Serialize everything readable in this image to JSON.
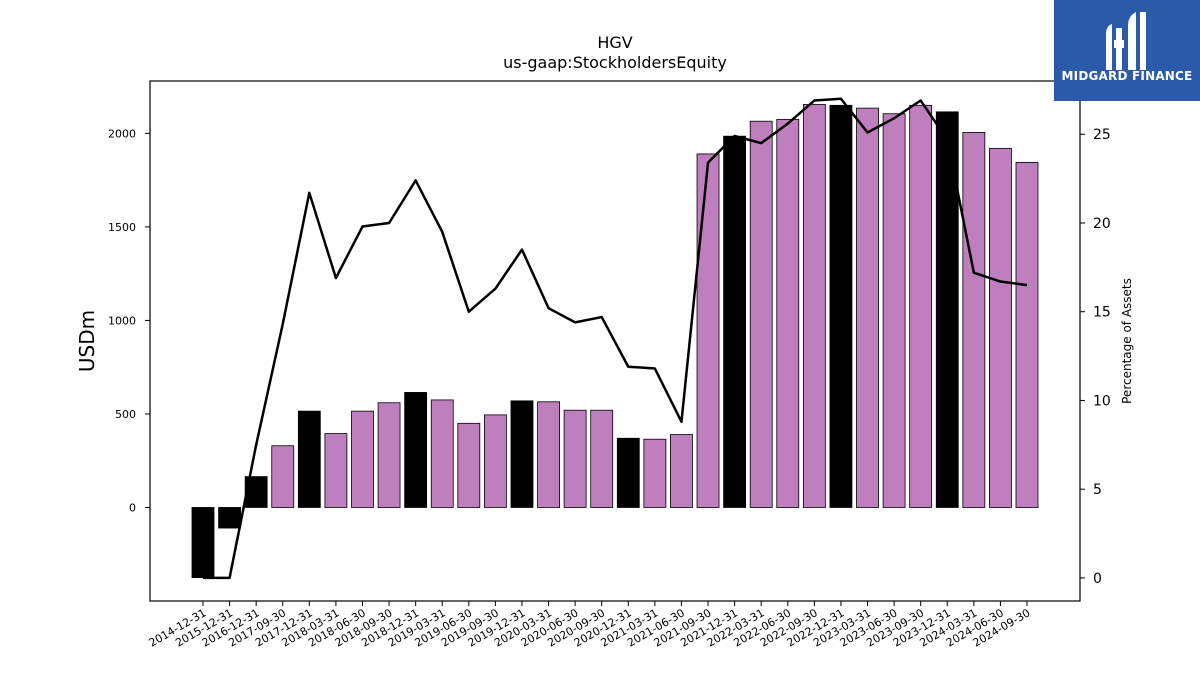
{
  "chart_data": {
    "type": "bar+line",
    "title": "HGV",
    "subtitle": "us-gaap:StockholdersEquity",
    "ylabel": "USDm",
    "y2label": "Percentage of Assets",
    "ylim": [
      -500,
      2280
    ],
    "y2lim": [
      -1.3,
      28
    ],
    "yticks": [
      0,
      500,
      1000,
      1500,
      2000
    ],
    "y2ticks": [
      0,
      5,
      10,
      15,
      20,
      25
    ],
    "categories": [
      "2014-12-31",
      "2015-12-31",
      "2016-12-31",
      "2017-09-30",
      "2017-12-31",
      "2018-03-31",
      "2018-06-30",
      "2018-09-30",
      "2018-12-31",
      "2019-03-31",
      "2019-06-30",
      "2019-09-30",
      "2019-12-31",
      "2020-03-31",
      "2020-06-30",
      "2020-09-30",
      "2020-12-31",
      "2021-03-31",
      "2021-06-30",
      "2021-09-30",
      "2021-12-31",
      "2022-03-31",
      "2022-06-30",
      "2022-09-30",
      "2022-12-31",
      "2023-03-31",
      "2023-06-30",
      "2023-09-30",
      "2023-12-31",
      "2024-03-31",
      "2024-06-30",
      "2024-09-30"
    ],
    "series": [
      {
        "kind": "bar",
        "values": [
          -375,
          -110,
          165,
          330,
          515,
          395,
          515,
          560,
          615,
          575,
          450,
          495,
          570,
          565,
          520,
          520,
          370,
          365,
          390,
          1890,
          1985,
          2065,
          2075,
          2155,
          2150,
          2135,
          2105,
          2150,
          2115,
          2005,
          1920,
          1845
        ],
        "highlight": [
          true,
          true,
          true,
          false,
          true,
          false,
          false,
          false,
          true,
          false,
          false,
          false,
          true,
          false,
          false,
          false,
          true,
          false,
          false,
          false,
          true,
          false,
          false,
          false,
          true,
          false,
          false,
          false,
          true,
          false,
          false,
          false
        ]
      },
      {
        "kind": "line",
        "axis": "right",
        "values": [
          0,
          0,
          7.5,
          14.3,
          21.7,
          16.9,
          19.8,
          20.0,
          22.4,
          19.5,
          15.0,
          16.3,
          18.5,
          15.2,
          14.4,
          14.7,
          11.9,
          11.8,
          8.8,
          23.4,
          24.9,
          24.5,
          25.6,
          26.9,
          27.0,
          25.1,
          25.9,
          26.9,
          24.7,
          17.2,
          16.7,
          16.5
        ]
      }
    ],
    "colors": {
      "bar": "#bf7fbf",
      "bar_highlight": "#000000",
      "line": "#000000"
    }
  },
  "logo": {
    "text": "MIDGARD FINANCE",
    "background": "#2b5aa8"
  }
}
